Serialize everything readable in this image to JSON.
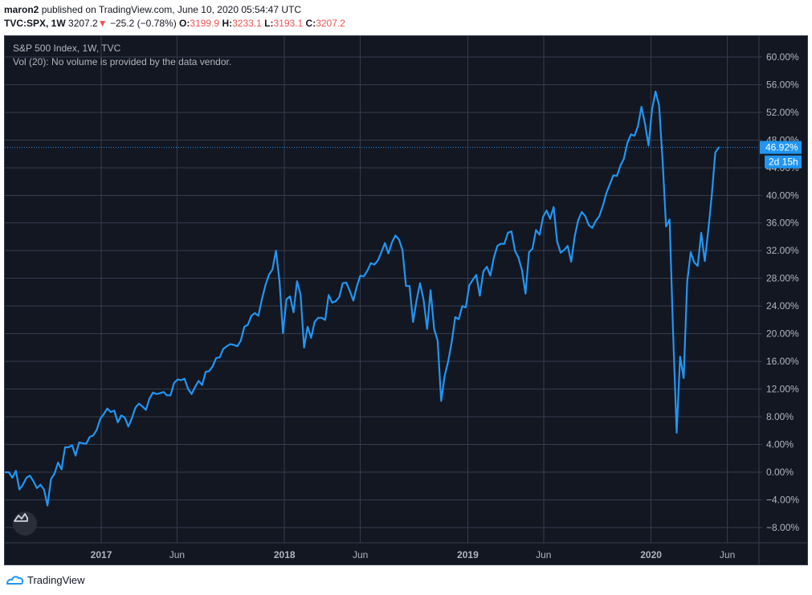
{
  "header": {
    "author": "maron2",
    "published_text": "published on TradingView.com, June 10, 2020 05:54:47 UTC",
    "symbol": "TVC:SPX, 1W",
    "last": "3207.2",
    "change_arrow": "▼",
    "change": "−25.2 (−0.78%)",
    "o_label": "O:",
    "o_value": "3199.9",
    "h_label": "H:",
    "h_value": "3233.1",
    "l_label": "L:",
    "l_value": "3193.1",
    "c_label": "C:",
    "c_value": "3207.2"
  },
  "legend": {
    "title": "S&P 500 Index, 1W, TVC",
    "vol": "Vol (20): No volume is provided by the data vendor."
  },
  "footer": {
    "brand": "TradingView"
  },
  "colors": {
    "background": "#131722",
    "grid": "#363c4e",
    "line": "#2196f3",
    "text": "#b2b5be",
    "negative": "#ef5350"
  },
  "chart_data": {
    "type": "line",
    "title": "S&P 500 Index, 1W, TVC",
    "xlabel": "",
    "ylabel": "",
    "x_ticks": [
      {
        "date": "2017-01-01",
        "label": "2017",
        "bold": true
      },
      {
        "date": "2017-06-01",
        "label": "Jun",
        "bold": false
      },
      {
        "date": "2018-01-01",
        "label": "2018",
        "bold": true
      },
      {
        "date": "2018-06-01",
        "label": "Jun",
        "bold": false
      },
      {
        "date": "2019-01-01",
        "label": "2019",
        "bold": true
      },
      {
        "date": "2019-06-01",
        "label": "Jun",
        "bold": false
      },
      {
        "date": "2020-01-01",
        "label": "2020",
        "bold": true
      },
      {
        "date": "2020-06-01",
        "label": "Jun",
        "bold": false
      }
    ],
    "y_ticks": [
      "60.00%",
      "56.00%",
      "52.00%",
      "48.00%",
      "44.00%",
      "40.00%",
      "36.00%",
      "32.00%",
      "28.00%",
      "24.00%",
      "20.00%",
      "16.00%",
      "12.00%",
      "8.00%",
      "4.00%",
      "0.00%",
      "−4.00%",
      "−8.00%"
    ],
    "y_tick_values": [
      60,
      56,
      52,
      48,
      44,
      40,
      36,
      32,
      28,
      24,
      20,
      16,
      12,
      8,
      4,
      0,
      -4,
      -8
    ],
    "ylim": [
      -10.2,
      63.0
    ],
    "xlim": [
      "2016-06-23",
      "2020-08-03"
    ],
    "last_value_label": "46.92%",
    "countdown_label": "2d 15h",
    "last_value": 46.92,
    "series": [
      {
        "name": "S&P 500 Index",
        "points": [
          [
            "2016-06-24",
            0.0
          ],
          [
            "2016-07-01",
            0.0
          ],
          [
            "2016-07-08",
            -0.8
          ],
          [
            "2016-07-15",
            0.2
          ],
          [
            "2016-07-22",
            -2.5
          ],
          [
            "2016-07-29",
            -1.8
          ],
          [
            "2016-08-05",
            -0.8
          ],
          [
            "2016-08-12",
            -0.5
          ],
          [
            "2016-08-19",
            -1.3
          ],
          [
            "2016-08-26",
            -2.3
          ],
          [
            "2016-09-02",
            -1.8
          ],
          [
            "2016-09-09",
            -2.5
          ],
          [
            "2016-09-16",
            -4.8
          ],
          [
            "2016-09-23",
            -1.0
          ],
          [
            "2016-09-30",
            -0.2
          ],
          [
            "2016-10-07",
            1.4
          ],
          [
            "2016-10-14",
            0.4
          ],
          [
            "2016-10-21",
            3.6
          ],
          [
            "2016-10-28",
            3.6
          ],
          [
            "2016-11-04",
            3.9
          ],
          [
            "2016-11-11",
            2.4
          ],
          [
            "2016-11-18",
            4.3
          ],
          [
            "2016-11-25",
            4.2
          ],
          [
            "2016-12-02",
            4.1
          ],
          [
            "2016-12-09",
            5.1
          ],
          [
            "2016-12-16",
            5.3
          ],
          [
            "2016-12-23",
            6.1
          ],
          [
            "2016-12-30",
            7.7
          ],
          [
            "2017-01-06",
            8.4
          ],
          [
            "2017-01-13",
            9.2
          ],
          [
            "2017-01-20",
            8.7
          ],
          [
            "2017-01-27",
            8.9
          ],
          [
            "2017-02-03",
            7.2
          ],
          [
            "2017-02-10",
            8.2
          ],
          [
            "2017-02-17",
            7.9
          ],
          [
            "2017-02-24",
            6.6
          ],
          [
            "2017-03-03",
            7.8
          ],
          [
            "2017-03-10",
            9.3
          ],
          [
            "2017-03-17",
            9.9
          ],
          [
            "2017-03-24",
            9.5
          ],
          [
            "2017-03-31",
            9.0
          ],
          [
            "2017-04-07",
            10.6
          ],
          [
            "2017-04-14",
            11.5
          ],
          [
            "2017-04-21",
            11.3
          ],
          [
            "2017-04-28",
            11.4
          ],
          [
            "2017-05-05",
            11.6
          ],
          [
            "2017-05-12",
            11.1
          ],
          [
            "2017-05-19",
            11.1
          ],
          [
            "2017-05-26",
            12.9
          ],
          [
            "2017-06-02",
            13.4
          ],
          [
            "2017-06-09",
            13.3
          ],
          [
            "2017-06-16",
            13.5
          ],
          [
            "2017-06-23",
            12.0
          ],
          [
            "2017-06-30",
            11.3
          ],
          [
            "2017-07-07",
            12.3
          ],
          [
            "2017-07-14",
            13.2
          ],
          [
            "2017-07-21",
            12.6
          ],
          [
            "2017-07-28",
            14.5
          ],
          [
            "2017-08-04",
            14.6
          ],
          [
            "2017-08-11",
            15.3
          ],
          [
            "2017-08-18",
            16.5
          ],
          [
            "2017-08-25",
            16.6
          ],
          [
            "2017-09-01",
            17.8
          ],
          [
            "2017-09-08",
            18.2
          ],
          [
            "2017-09-15",
            18.5
          ],
          [
            "2017-09-22",
            18.4
          ],
          [
            "2017-09-29",
            18.2
          ],
          [
            "2017-10-06",
            19.0
          ],
          [
            "2017-10-13",
            21.0
          ],
          [
            "2017-10-20",
            21.3
          ],
          [
            "2017-10-27",
            22.6
          ],
          [
            "2017-11-03",
            23.0
          ],
          [
            "2017-11-10",
            22.6
          ],
          [
            "2017-11-17",
            25.0
          ],
          [
            "2017-11-24",
            27.0
          ],
          [
            "2017-12-01",
            28.5
          ],
          [
            "2017-12-08",
            29.3
          ],
          [
            "2017-12-15",
            32.0
          ],
          [
            "2017-12-22",
            27.6
          ],
          [
            "2017-12-29",
            20.1
          ],
          [
            "2018-01-05",
            25.0
          ],
          [
            "2018-01-12",
            25.4
          ],
          [
            "2018-01-19",
            23.1
          ],
          [
            "2018-01-26",
            27.6
          ],
          [
            "2018-02-02",
            25.7
          ],
          [
            "2018-02-09",
            18.0
          ],
          [
            "2018-02-16",
            21.0
          ],
          [
            "2018-02-23",
            19.4
          ],
          [
            "2018-03-02",
            21.7
          ],
          [
            "2018-03-09",
            22.3
          ],
          [
            "2018-03-16",
            22.3
          ],
          [
            "2018-03-23",
            22.0
          ],
          [
            "2018-03-30",
            25.6
          ],
          [
            "2018-04-06",
            24.5
          ],
          [
            "2018-04-13",
            24.7
          ],
          [
            "2018-04-20",
            25.3
          ],
          [
            "2018-04-27",
            27.3
          ],
          [
            "2018-05-04",
            27.4
          ],
          [
            "2018-05-11",
            26.2
          ],
          [
            "2018-05-18",
            24.8
          ],
          [
            "2018-05-25",
            26.8
          ],
          [
            "2018-06-01",
            28.4
          ],
          [
            "2018-06-08",
            28.3
          ],
          [
            "2018-06-15",
            29.1
          ],
          [
            "2018-06-22",
            30.2
          ],
          [
            "2018-06-29",
            30.0
          ],
          [
            "2018-07-06",
            30.6
          ],
          [
            "2018-07-13",
            31.8
          ],
          [
            "2018-07-20",
            33.1
          ],
          [
            "2018-07-27",
            31.6
          ],
          [
            "2018-08-03",
            33.2
          ],
          [
            "2018-08-10",
            34.2
          ],
          [
            "2018-08-17",
            33.6
          ],
          [
            "2018-08-24",
            32.1
          ],
          [
            "2018-08-31",
            26.9
          ],
          [
            "2018-09-07",
            26.9
          ],
          [
            "2018-09-14",
            21.7
          ],
          [
            "2018-09-21",
            24.8
          ],
          [
            "2018-09-28",
            27.3
          ],
          [
            "2018-10-05",
            24.9
          ],
          [
            "2018-10-12",
            20.7
          ],
          [
            "2018-10-19",
            26.3
          ],
          [
            "2018-10-26",
            20.7
          ],
          [
            "2018-11-02",
            19.0
          ],
          [
            "2018-11-09",
            10.3
          ],
          [
            "2018-11-16",
            13.9
          ],
          [
            "2018-11-23",
            16.0
          ],
          [
            "2018-11-30",
            18.8
          ],
          [
            "2018-12-07",
            22.4
          ],
          [
            "2018-12-14",
            22.1
          ],
          [
            "2018-12-21",
            24.0
          ],
          [
            "2018-12-28",
            23.8
          ],
          [
            "2019-01-04",
            27.0
          ],
          [
            "2019-01-11",
            27.8
          ],
          [
            "2019-01-18",
            28.5
          ],
          [
            "2019-01-25",
            25.5
          ],
          [
            "2019-02-01",
            29.0
          ],
          [
            "2019-02-08",
            29.7
          ],
          [
            "2019-02-15",
            28.4
          ],
          [
            "2019-02-22",
            31.0
          ],
          [
            "2019-03-01",
            32.7
          ],
          [
            "2019-03-08",
            33.0
          ],
          [
            "2019-03-15",
            33.0
          ],
          [
            "2019-03-22",
            34.6
          ],
          [
            "2019-03-29",
            34.8
          ],
          [
            "2019-04-05",
            32.0
          ],
          [
            "2019-04-12",
            31.0
          ],
          [
            "2019-04-19",
            29.2
          ],
          [
            "2019-04-26",
            25.8
          ],
          [
            "2019-05-03",
            31.8
          ],
          [
            "2019-05-10",
            32.3
          ],
          [
            "2019-05-17",
            35.0
          ],
          [
            "2019-05-24",
            34.3
          ],
          [
            "2019-05-31",
            36.9
          ],
          [
            "2019-06-07",
            37.8
          ],
          [
            "2019-06-14",
            36.6
          ],
          [
            "2019-06-21",
            38.3
          ],
          [
            "2019-06-28",
            33.3
          ],
          [
            "2019-07-05",
            31.7
          ],
          [
            "2019-07-12",
            32.1
          ],
          [
            "2019-07-19",
            32.7
          ],
          [
            "2019-07-26",
            30.4
          ],
          [
            "2019-08-02",
            34.1
          ],
          [
            "2019-08-09",
            36.4
          ],
          [
            "2019-08-16",
            37.6
          ],
          [
            "2019-08-23",
            37.0
          ],
          [
            "2019-08-30",
            35.7
          ],
          [
            "2019-09-06",
            35.3
          ],
          [
            "2019-09-13",
            36.3
          ],
          [
            "2019-09-20",
            37.0
          ],
          [
            "2019-09-27",
            38.5
          ],
          [
            "2019-10-04",
            40.3
          ],
          [
            "2019-10-11",
            41.6
          ],
          [
            "2019-10-18",
            42.9
          ],
          [
            "2019-10-25",
            42.8
          ],
          [
            "2019-11-01",
            44.3
          ],
          [
            "2019-11-08",
            45.3
          ],
          [
            "2019-11-15",
            47.6
          ],
          [
            "2019-11-22",
            48.8
          ],
          [
            "2019-11-29",
            48.6
          ],
          [
            "2019-12-06",
            50.0
          ],
          [
            "2019-12-13",
            52.8
          ],
          [
            "2019-12-20",
            50.3
          ],
          [
            "2019-12-27",
            47.2
          ],
          [
            "2020-01-03",
            52.4
          ],
          [
            "2020-01-10",
            55.0
          ],
          [
            "2020-01-17",
            53.0
          ],
          [
            "2020-01-24",
            45.0
          ],
          [
            "2020-01-31",
            35.5
          ],
          [
            "2020-02-07",
            36.5
          ],
          [
            "2020-02-14",
            20.0
          ],
          [
            "2020-02-21",
            5.7
          ],
          [
            "2020-02-28",
            16.7
          ],
          [
            "2020-03-06",
            13.6
          ],
          [
            "2020-03-13",
            27.5
          ],
          [
            "2020-03-20",
            31.8
          ],
          [
            "2020-03-27",
            30.3
          ],
          [
            "2020-04-03",
            29.8
          ],
          [
            "2020-04-10",
            34.6
          ],
          [
            "2020-04-17",
            30.5
          ],
          [
            "2020-04-24",
            35.0
          ],
          [
            "2020-05-01",
            40.0
          ],
          [
            "2020-05-08",
            46.2
          ],
          [
            "2020-05-15",
            46.92
          ]
        ]
      }
    ]
  }
}
